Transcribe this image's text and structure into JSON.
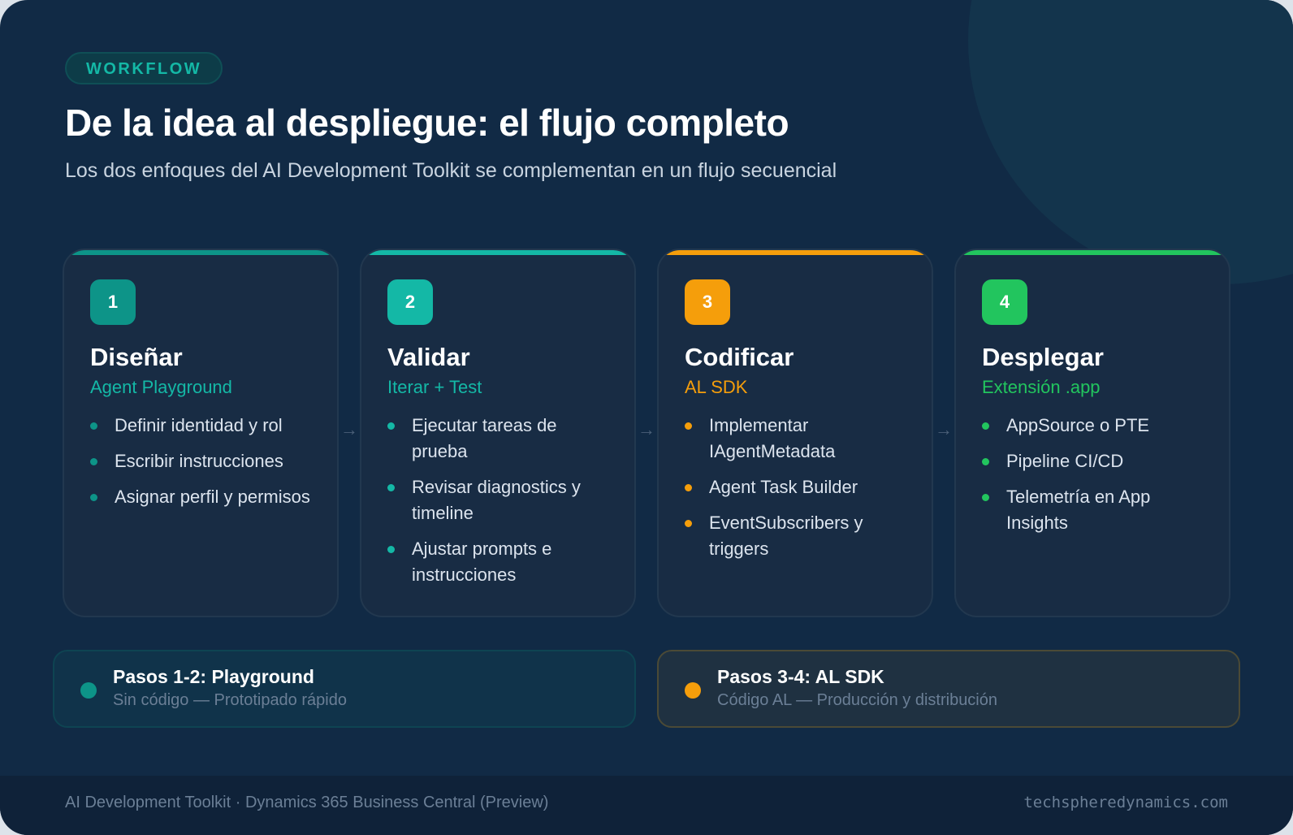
{
  "badge": "WORKFLOW",
  "title": "De la idea al despliegue: el flujo completo",
  "subtitle": "Los dos enfoques del AI Development Toolkit se complementan en un flujo secuencial",
  "arrow_glyph": "→",
  "steps": [
    {
      "number": "1",
      "title": "Diseñar",
      "subtitle": "Agent Playground",
      "color": "#0d9488",
      "items": [
        "Definir identidad y rol",
        "Escribir instrucciones",
        "Asignar perfil y permisos"
      ]
    },
    {
      "number": "2",
      "title": "Validar",
      "subtitle": "Iterar + Test",
      "color": "#14b8a6",
      "items": [
        "Ejecutar tareas de prueba",
        "Revisar diagnostics y timeline",
        "Ajustar prompts e instrucciones"
      ]
    },
    {
      "number": "3",
      "title": "Codificar",
      "subtitle": "AL SDK",
      "color": "#f59e0b",
      "items": [
        "Implementar IAgentMetadata",
        "Agent Task Builder",
        "EventSubscribers y triggers"
      ]
    },
    {
      "number": "4",
      "title": "Desplegar",
      "subtitle": "Extensión .app",
      "color": "#22c55e",
      "items": [
        "AppSource o PTE",
        "Pipeline CI/CD",
        "Telemetría en App Insights"
      ]
    }
  ],
  "summaries": [
    {
      "title": "Pasos 1-2: Playground",
      "subtitle": "Sin código — Prototipado rápido",
      "color": "#0d9488"
    },
    {
      "title": "Pasos 3-4: AL SDK",
      "subtitle": "Código AL — Producción y distribución",
      "color": "#f59e0b"
    }
  ],
  "footer": {
    "left": "AI Development Toolkit · Dynamics 365 Business Central (Preview)",
    "right": "techspheredynamics.com"
  }
}
